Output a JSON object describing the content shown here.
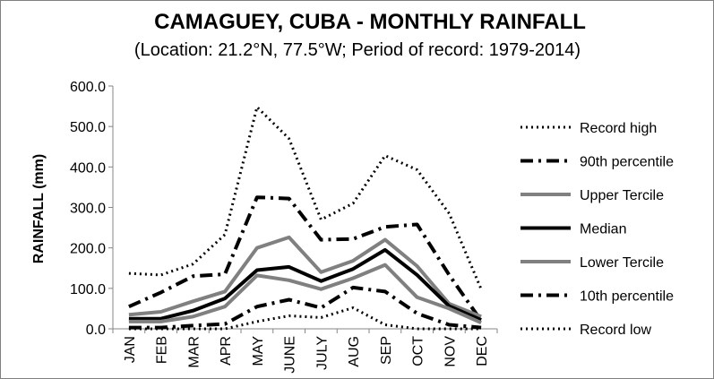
{
  "chart_data": {
    "type": "line",
    "title": "CAMAGUEY, CUBA - MONTHLY RAINFALL",
    "subtitle": "(Location: 21.2°N, 77.5°W; Period of record: 1979-2014)",
    "ylabel": "RAINFALL (mm)",
    "xlabel": "",
    "ylim": [
      0,
      600
    ],
    "yticks": [
      "0.0",
      "100.0",
      "200.0",
      "300.0",
      "400.0",
      "500.0",
      "600.0"
    ],
    "categories": [
      "JAN",
      "FEB",
      "MAR",
      "APR",
      "MAY",
      "JUNE",
      "JULY",
      "AUG",
      "SEP",
      "OCT",
      "NOV",
      "DEC"
    ],
    "legend_position": "right",
    "grid": false,
    "series": [
      {
        "name": "Record high",
        "color": "#000000",
        "style": "dotted",
        "width": 3,
        "values": [
          137,
          133,
          160,
          233,
          548,
          470,
          270,
          310,
          428,
          393,
          285,
          98
        ]
      },
      {
        "name": "90th percentile",
        "color": "#000000",
        "style": "dashdot",
        "width": 4,
        "values": [
          55,
          90,
          130,
          135,
          325,
          322,
          220,
          222,
          252,
          258,
          133,
          20
        ]
      },
      {
        "name": "Upper Tercile",
        "color": "#808080",
        "style": "solid",
        "width": 4,
        "values": [
          35,
          42,
          68,
          92,
          200,
          226,
          140,
          168,
          220,
          155,
          62,
          30
        ]
      },
      {
        "name": "Median",
        "color": "#000000",
        "style": "solid",
        "width": 4,
        "values": [
          25,
          25,
          45,
          75,
          145,
          153,
          118,
          148,
          195,
          133,
          56,
          22
        ]
      },
      {
        "name": "Lower Tercile",
        "color": "#808080",
        "style": "solid",
        "width": 4,
        "values": [
          18,
          18,
          30,
          55,
          132,
          120,
          98,
          125,
          158,
          78,
          50,
          15
        ]
      },
      {
        "name": "10th percentile",
        "color": "#000000",
        "style": "dashdot",
        "width": 4,
        "values": [
          3,
          3,
          8,
          12,
          55,
          72,
          52,
          102,
          92,
          38,
          10,
          3
        ]
      },
      {
        "name": "Record low",
        "color": "#000000",
        "style": "dotted",
        "width": 3,
        "values": [
          0,
          0,
          0,
          0,
          18,
          32,
          28,
          52,
          10,
          0,
          0,
          0
        ]
      }
    ]
  }
}
